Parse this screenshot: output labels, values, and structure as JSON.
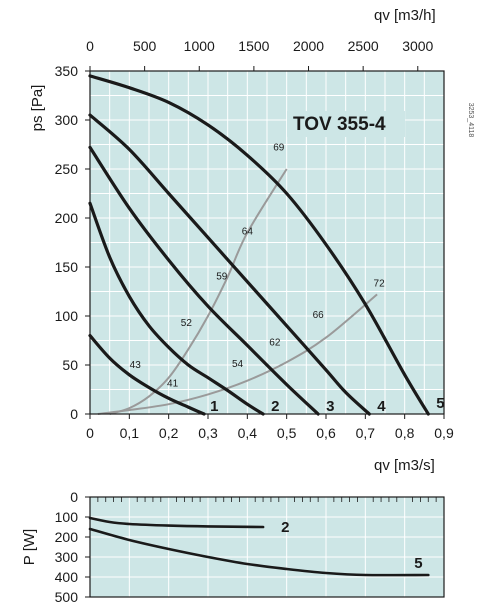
{
  "model": "TOV 355-4",
  "ref_code": "3253_4118",
  "colors": {
    "background": "#cde6e6",
    "grid": "#ffffff",
    "curve": "#1a1a1a",
    "efficiency": "#9a9a9a",
    "frame": "#1a1a1a"
  },
  "chart_data": [
    {
      "type": "line",
      "title": "TOV 355-4",
      "xlabel": "q_v [m^3/s]",
      "x_top_label": "q_v [m^3/h]",
      "ylabel": "p_s [Pa]",
      "x_bottom_title_text": "qv [m3/s]",
      "x_top_title_text": "qv [m3/h]",
      "y_title_text": "ps [Pa]",
      "xlim": [
        0,
        0.9
      ],
      "ylim": [
        0,
        350
      ],
      "x_top_lim": [
        0,
        3240
      ],
      "x_ticks": [
        "0",
        "0,1",
        "0,2",
        "0,3",
        "0,4",
        "0,5",
        "0,6",
        "0,7",
        "0,8",
        "0,9"
      ],
      "x_top_ticks": [
        "0",
        "500",
        "1000",
        "1500",
        "2000",
        "2500",
        "3000"
      ],
      "y_ticks": [
        "0",
        "50",
        "100",
        "150",
        "200",
        "250",
        "300",
        "350"
      ],
      "grid": true,
      "series": [
        {
          "name": "1",
          "x": [
            0,
            0.05,
            0.1,
            0.15,
            0.2,
            0.25,
            0.29
          ],
          "y": [
            80,
            57,
            40,
            27,
            16,
            7,
            0
          ]
        },
        {
          "name": "2",
          "x": [
            0,
            0.05,
            0.1,
            0.15,
            0.2,
            0.25,
            0.3,
            0.35,
            0.4,
            0.44
          ],
          "y": [
            215,
            160,
            120,
            90,
            68,
            50,
            37,
            24,
            10,
            0
          ]
        },
        {
          "name": "3",
          "x": [
            0,
            0.1,
            0.2,
            0.3,
            0.4,
            0.5,
            0.58
          ],
          "y": [
            272,
            210,
            157,
            110,
            70,
            30,
            0
          ]
        },
        {
          "name": "4",
          "x": [
            0,
            0.1,
            0.2,
            0.3,
            0.4,
            0.5,
            0.6,
            0.65,
            0.71
          ],
          "y": [
            305,
            270,
            225,
            180,
            135,
            90,
            45,
            22,
            0
          ]
        },
        {
          "name": "5",
          "x": [
            0,
            0.1,
            0.2,
            0.3,
            0.4,
            0.5,
            0.6,
            0.7,
            0.8,
            0.86
          ],
          "y": [
            345,
            333,
            318,
            295,
            264,
            225,
            173,
            112,
            40,
            0
          ]
        }
      ],
      "efficiency_curves": [
        {
          "x": [
            0.02,
            0.1,
            0.2,
            0.3,
            0.4,
            0.5,
            0.6,
            0.73
          ],
          "y": [
            0,
            4,
            10,
            20,
            34,
            53,
            78,
            122
          ]
        },
        {
          "x": [
            0.05,
            0.1,
            0.15,
            0.2,
            0.25,
            0.3,
            0.35,
            0.4,
            0.5
          ],
          "y": [
            0,
            6,
            18,
            37,
            66,
            100,
            140,
            185,
            250
          ]
        }
      ],
      "efficiency_labels": [
        {
          "text": "43",
          "x": 0.115,
          "y": 47
        },
        {
          "text": "41",
          "x": 0.21,
          "y": 28
        },
        {
          "text": "52",
          "x": 0.245,
          "y": 90
        },
        {
          "text": "54",
          "x": 0.375,
          "y": 48
        },
        {
          "text": "59",
          "x": 0.335,
          "y": 137
        },
        {
          "text": "62",
          "x": 0.47,
          "y": 70
        },
        {
          "text": "64",
          "x": 0.4,
          "y": 183
        },
        {
          "text": "66",
          "x": 0.58,
          "y": 98
        },
        {
          "text": "69",
          "x": 0.48,
          "y": 269
        },
        {
          "text": "72",
          "x": 0.735,
          "y": 130
        }
      ]
    },
    {
      "type": "line",
      "ylabel": "P [W]",
      "y_title_text": "P [W]",
      "xlim": [
        0,
        0.9
      ],
      "ylim": [
        0,
        500
      ],
      "y_inverted": true,
      "y_ticks": [
        "0",
        "100",
        "200",
        "300",
        "400",
        "500"
      ],
      "grid": true,
      "series": [
        {
          "name": "2",
          "x": [
            0,
            0.05,
            0.1,
            0.2,
            0.3,
            0.44
          ],
          "y": [
            105,
            125,
            135,
            143,
            147,
            150
          ]
        },
        {
          "name": "5",
          "x": [
            0,
            0.1,
            0.2,
            0.3,
            0.4,
            0.5,
            0.6,
            0.7,
            0.86
          ],
          "y": [
            160,
            215,
            260,
            300,
            335,
            360,
            380,
            390,
            390
          ]
        }
      ]
    }
  ]
}
